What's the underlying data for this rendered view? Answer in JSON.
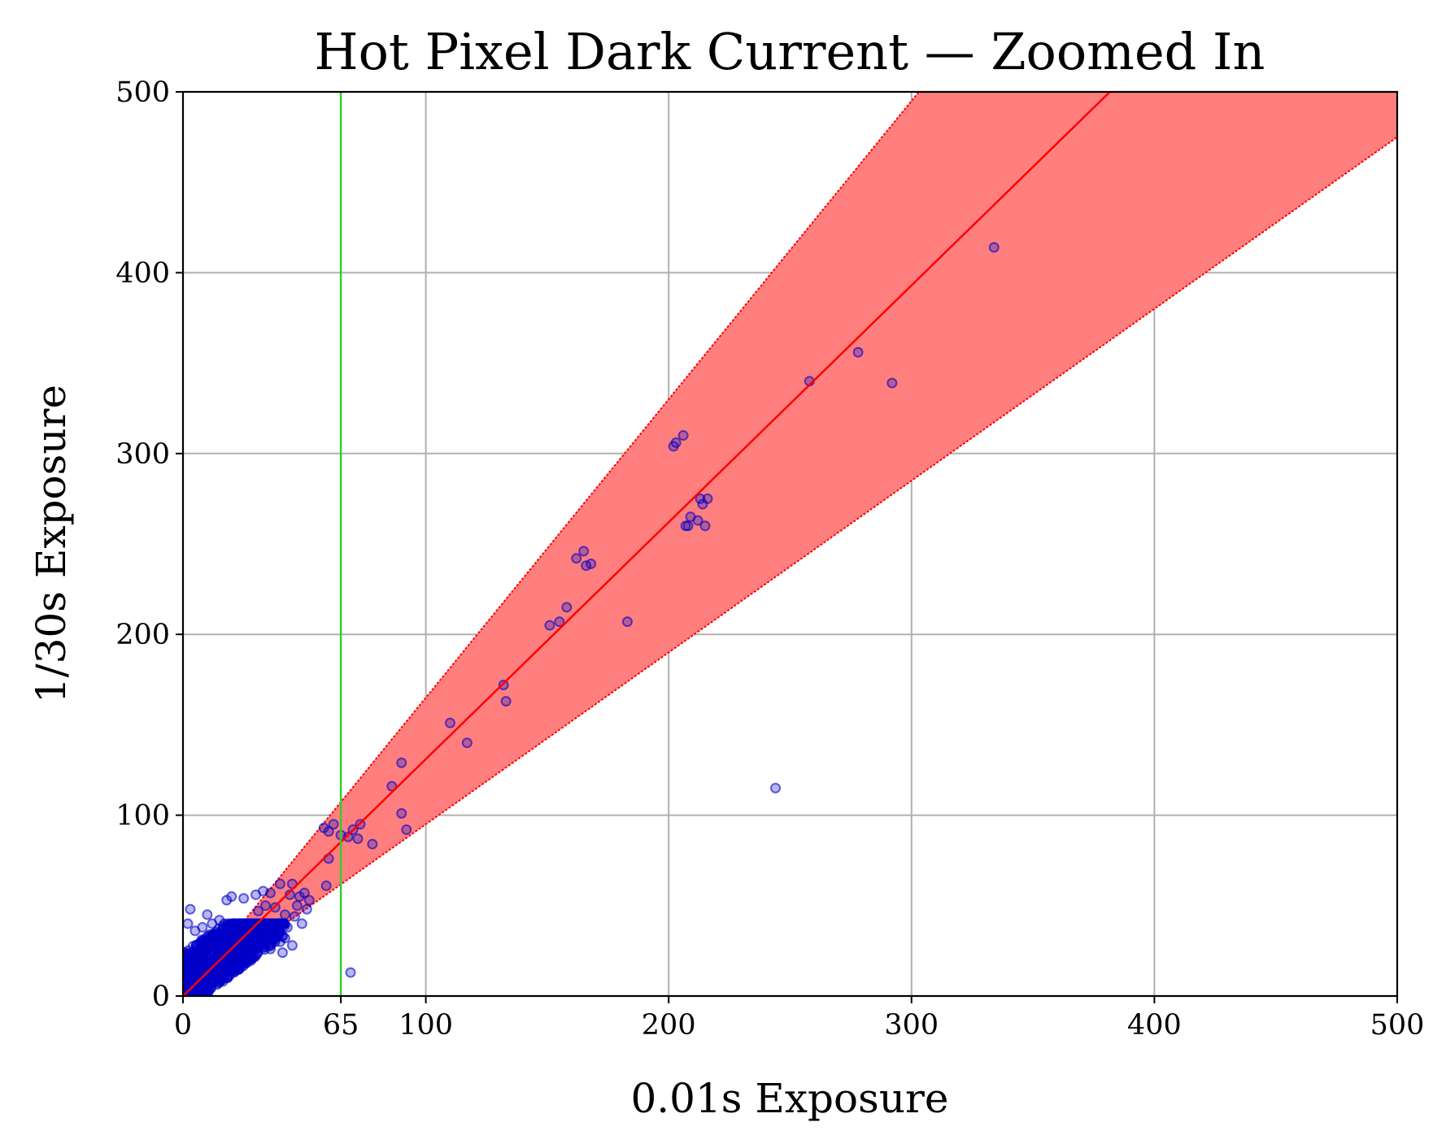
{
  "chart_data": {
    "type": "scatter",
    "title": "Hot Pixel Dark Current — Zoomed In",
    "xlabel": "0.01s Exposure",
    "ylabel": "1/30s Exposure",
    "xlim": [
      0,
      500
    ],
    "ylim": [
      0,
      500
    ],
    "x_ticks": [
      0,
      65,
      100,
      200,
      300,
      400,
      500
    ],
    "y_ticks": [
      0,
      100,
      200,
      300,
      400,
      500
    ],
    "grid": true,
    "colors": {
      "points": "#0000cd",
      "fit_line": "#ff0000",
      "band": "#ff7f7f",
      "threshold_line": "#33cc33"
    },
    "threshold_x": 65,
    "fit_line": {
      "slope": 1.31
    },
    "band": {
      "upper_slope": 1.65,
      "lower_slope": 0.95
    },
    "points": [
      [
        334,
        414
      ],
      [
        278,
        356
      ],
      [
        258,
        340
      ],
      [
        292,
        339
      ],
      [
        202,
        304
      ],
      [
        203,
        306
      ],
      [
        206,
        310
      ],
      [
        213,
        275
      ],
      [
        216,
        275
      ],
      [
        214,
        272
      ],
      [
        212,
        263
      ],
      [
        207,
        260
      ],
      [
        208,
        260
      ],
      [
        209,
        265
      ],
      [
        215,
        260
      ],
      [
        165,
        246
      ],
      [
        162,
        242
      ],
      [
        166,
        238
      ],
      [
        168,
        239
      ],
      [
        158,
        215
      ],
      [
        155,
        207
      ],
      [
        151,
        205
      ],
      [
        183,
        207
      ],
      [
        132,
        172
      ],
      [
        133,
        163
      ],
      [
        110,
        151
      ],
      [
        117,
        140
      ],
      [
        90,
        129
      ],
      [
        86,
        116
      ],
      [
        90,
        101
      ],
      [
        92,
        92
      ],
      [
        244,
        115
      ],
      [
        58,
        93
      ],
      [
        60,
        91
      ],
      [
        62,
        95
      ],
      [
        65,
        89
      ],
      [
        68,
        88
      ],
      [
        70,
        92
      ],
      [
        73,
        95
      ],
      [
        72,
        87
      ],
      [
        78,
        84
      ],
      [
        60,
        76
      ],
      [
        59,
        61
      ],
      [
        69,
        13
      ],
      [
        45,
        62
      ],
      [
        50,
        57
      ],
      [
        48,
        55
      ],
      [
        52,
        53
      ],
      [
        47,
        50
      ],
      [
        44,
        56
      ],
      [
        40,
        62
      ],
      [
        36,
        57
      ],
      [
        38,
        49
      ],
      [
        42,
        45
      ],
      [
        46,
        44
      ],
      [
        49,
        40
      ],
      [
        51,
        48
      ],
      [
        43,
        38
      ],
      [
        33,
        58
      ],
      [
        30,
        56
      ],
      [
        25,
        54
      ],
      [
        20,
        55
      ],
      [
        18,
        53
      ],
      [
        34,
        50
      ],
      [
        31,
        47
      ],
      [
        39,
        35
      ],
      [
        40,
        30
      ],
      [
        42,
        32
      ],
      [
        45,
        28
      ],
      [
        36,
        26
      ],
      [
        41,
        24
      ],
      [
        38,
        40
      ],
      [
        3,
        48
      ],
      [
        2,
        40
      ],
      [
        5,
        36
      ],
      [
        8,
        38
      ],
      [
        12,
        40
      ],
      [
        15,
        42
      ],
      [
        10,
        45
      ]
    ]
  }
}
